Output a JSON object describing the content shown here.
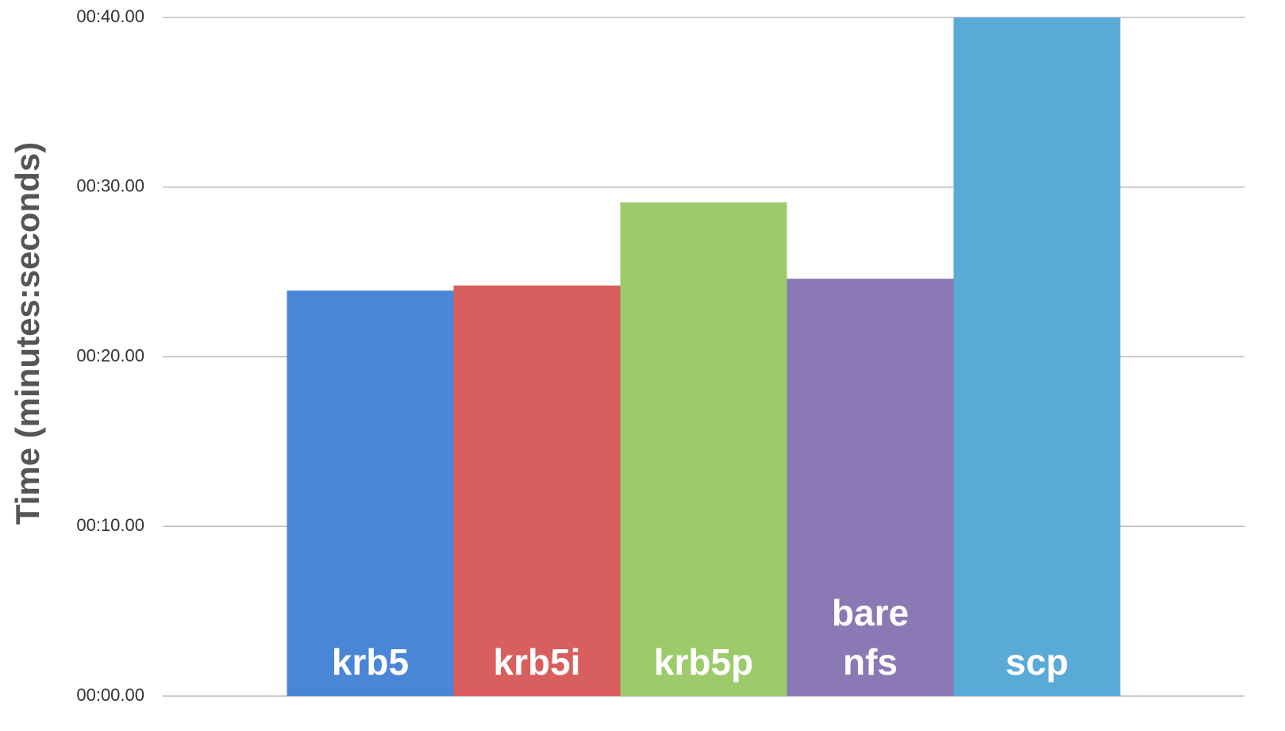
{
  "chart_data": {
    "type": "bar",
    "y_label": "Time (minutes:seconds)",
    "categories": [
      "krb5",
      "krb5i",
      "krb5p",
      "bare\nnfs",
      "scp"
    ],
    "values": [
      23.9,
      24.2,
      29.1,
      24.6,
      40.0
    ],
    "colors": [
      "#4a86d6",
      "#d95f5f",
      "#9dcb6b",
      "#8a79b4",
      "#5aaad8"
    ],
    "ylim": [
      0,
      40
    ],
    "yticks": [
      {
        "value": 0,
        "label": "00:00.00"
      },
      {
        "value": 10,
        "label": "00:10.00"
      },
      {
        "value": 20,
        "label": "00:20.00"
      },
      {
        "value": 30,
        "label": "00:30.00"
      },
      {
        "value": 40,
        "label": "00:40.00"
      }
    ],
    "grid": true
  }
}
